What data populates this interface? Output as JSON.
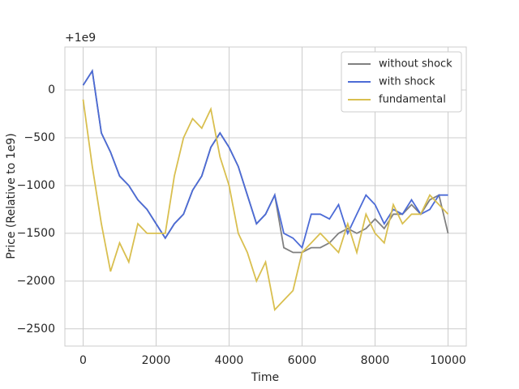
{
  "chart_data": {
    "type": "line",
    "y_offset_label": "+1e9",
    "x_label": "Time",
    "y_label": "Price (Relative to 1e9)",
    "x": [
      0,
      250,
      500,
      750,
      1000,
      1250,
      1500,
      1750,
      2000,
      2250,
      2500,
      2750,
      3000,
      3250,
      3500,
      3750,
      4000,
      4250,
      4500,
      4750,
      5000,
      5250,
      5500,
      5750,
      6000,
      6250,
      6500,
      6750,
      7000,
      7250,
      7500,
      7750,
      8000,
      8250,
      8500,
      8750,
      9000,
      9250,
      9500,
      9750,
      10000
    ],
    "series": [
      {
        "name": "without shock",
        "color": "#808080",
        "values": [
          50,
          200,
          -450,
          -650,
          -900,
          -1000,
          -1150,
          -1250,
          -1400,
          -1550,
          -1400,
          -1300,
          -1050,
          -900,
          -600,
          -450,
          -600,
          -800,
          -1100,
          -1400,
          -1300,
          -1100,
          -1650,
          -1700,
          -1700,
          -1650,
          -1650,
          -1600,
          -1500,
          -1450,
          -1500,
          -1450,
          -1350,
          -1450,
          -1300,
          -1300,
          -1200,
          -1300,
          -1150,
          -1100,
          -1500
        ]
      },
      {
        "name": "with shock",
        "color": "#4c6bd6",
        "values": [
          50,
          200,
          -450,
          -650,
          -900,
          -1000,
          -1150,
          -1250,
          -1400,
          -1550,
          -1400,
          -1300,
          -1050,
          -900,
          -600,
          -450,
          -600,
          -800,
          -1100,
          -1400,
          -1300,
          -1100,
          -1500,
          -1550,
          -1650,
          -1300,
          -1300,
          -1350,
          -1200,
          -1500,
          -1300,
          -1100,
          -1200,
          -1400,
          -1250,
          -1300,
          -1150,
          -1300,
          -1250,
          -1100,
          -1100
        ]
      },
      {
        "name": "fundamental",
        "color": "#d9bf4f",
        "values": [
          -100,
          -800,
          -1400,
          -1900,
          -1600,
          -1800,
          -1400,
          -1500,
          -1500,
          -1500,
          -900,
          -500,
          -300,
          -400,
          -200,
          -700,
          -1000,
          -1500,
          -1700,
          -2000,
          -1800,
          -2300,
          -2200,
          -2100,
          -1700,
          -1600,
          -1500,
          -1600,
          -1700,
          -1400,
          -1700,
          -1300,
          -1500,
          -1600,
          -1200,
          -1400,
          -1300,
          -1300,
          -1100,
          -1200,
          -1300
        ]
      }
    ],
    "xlim": [
      -500,
      10500
    ],
    "ylim": [
      -2680,
      450
    ],
    "xticks": [
      0,
      2000,
      4000,
      6000,
      8000,
      10000
    ],
    "yticks": [
      0,
      {
        "value": -500,
        "label": "−500"
      },
      {
        "value": -1000,
        "label": "−1000"
      },
      {
        "value": -1500,
        "label": "−1500"
      },
      {
        "value": -2000,
        "label": "−2000"
      },
      {
        "value": -2500,
        "label": "−2500"
      }
    ],
    "grid": true,
    "legend": "upper right"
  }
}
